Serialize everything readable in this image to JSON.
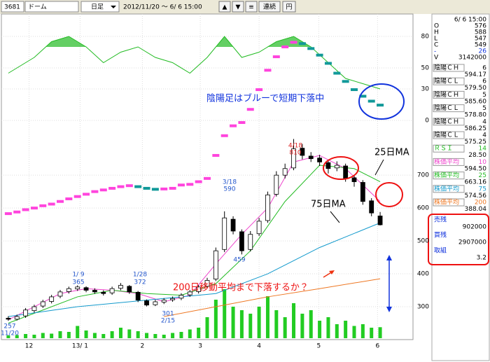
{
  "toolbar": {
    "code": "3681",
    "name": "ドーム",
    "period": "日足",
    "range": "2012/11/20 ～ 6/ 6 15:00",
    "buttons": [
      "▲",
      "▼",
      "≡",
      "連続",
      "円"
    ]
  },
  "chart_data": {
    "type": "candlestick",
    "xlim": [
      -0.8,
      46.8
    ],
    "xticks": [
      {
        "value": 2.4,
        "label": "12"
      },
      {
        "value": 8.3,
        "label": "13/ 1"
      },
      {
        "value": 15.5,
        "label": "2"
      },
      {
        "value": 22.2,
        "label": "3"
      },
      {
        "value": 29,
        "label": "4"
      },
      {
        "value": 35.9,
        "label": "5"
      },
      {
        "value": 42.7,
        "label": "6"
      }
    ],
    "ylim": [
      200,
      1190
    ],
    "yticks": [
      300,
      400,
      500,
      600,
      700
    ],
    "rsi_ylim": [
      0,
      100
    ],
    "rsi_yticks": [
      0,
      30,
      50,
      80
    ],
    "rsi_fill_above": 70,
    "grid": true,
    "up_color": "#ffffff",
    "down_color": "#000000",
    "open": [
      265,
      262,
      272,
      288,
      302,
      316,
      332,
      346,
      354,
      358,
      350,
      344,
      342,
      356,
      362,
      344,
      318,
      306,
      314,
      321,
      326,
      336,
      346,
      362,
      384,
      474,
      566,
      528,
      474,
      522,
      562,
      642,
      700,
      722,
      782,
      758,
      752,
      738,
      722,
      728,
      692,
      678,
      622,
      576
    ],
    "high": [
      271,
      276,
      296,
      306,
      321,
      336,
      351,
      361,
      365,
      362,
      356,
      350,
      361,
      372,
      366,
      348,
      322,
      321,
      326,
      331,
      341,
      351,
      366,
      388,
      480,
      590,
      575,
      535,
      530,
      570,
      650,
      712,
      735,
      810,
      795,
      770,
      762,
      745,
      742,
      735,
      700,
      685,
      630,
      588
    ],
    "low": [
      257,
      258,
      266,
      282,
      296,
      310,
      326,
      340,
      348,
      344,
      339,
      334,
      336,
      350,
      339,
      314,
      301,
      302,
      308,
      315,
      320,
      330,
      340,
      356,
      378,
      466,
      520,
      459,
      468,
      515,
      555,
      635,
      690,
      715,
      748,
      740,
      728,
      705,
      712,
      680,
      665,
      610,
      575,
      547
    ],
    "close": [
      262,
      270,
      290,
      300,
      315,
      330,
      345,
      355,
      360,
      350,
      345,
      340,
      355,
      365,
      345,
      320,
      305,
      315,
      320,
      325,
      335,
      345,
      360,
      380,
      470,
      570,
      530,
      470,
      520,
      560,
      640,
      700,
      720,
      780,
      760,
      750,
      740,
      720,
      730,
      690,
      680,
      620,
      585,
      549
    ],
    "volume": [
      800000,
      900000,
      1200000,
      1000000,
      1500000,
      1300000,
      2000000,
      1800000,
      3500000,
      2200000,
      1500000,
      1200000,
      2000000,
      3000000,
      2500000,
      2000000,
      1500000,
      1200000,
      1000000,
      1500000,
      1800000,
      2500000,
      3000000,
      6000000,
      11000000,
      14000000,
      9000000,
      8000000,
      7000000,
      9000000,
      12000000,
      8000000,
      6000000,
      10000000,
      7000000,
      8000000,
      5000000,
      6000000,
      4000000,
      5000000,
      3500000,
      4000000,
      3000000,
      3142000
    ],
    "volume_color": "#22cc22",
    "yinyang": {
      "up_color": "#ff44dd",
      "down_color": "#119999",
      "values": [
        583,
        588,
        595,
        600,
        607,
        612,
        620,
        628,
        635,
        642,
        650,
        655,
        660,
        665,
        668,
        665,
        660,
        657,
        658,
        660,
        670,
        672,
        680,
        690,
        760,
        820,
        850,
        860,
        900,
        960,
        1019,
        1060,
        1090,
        1104,
        1100,
        1085,
        1065,
        1040,
        1010,
        985,
        960,
        940,
        925,
        913
      ]
    },
    "ma_series": [
      {
        "color": "#ee44cc",
        "x": [
          0,
          3,
          6,
          9,
          12,
          15,
          18,
          21,
          24,
          27,
          30,
          33,
          36,
          39,
          43
        ],
        "values": [
          260,
          300,
          340,
          355,
          350,
          340,
          315,
          335,
          430,
          520,
          600,
          740,
          760,
          720,
          620
        ]
      },
      {
        "name": "25日MA",
        "color": "#22bb22",
        "x": [
          0,
          4,
          8,
          12,
          16,
          20,
          24,
          28,
          32,
          36,
          40,
          43
        ],
        "values": [
          250,
          290,
          330,
          350,
          340,
          335,
          370,
          470,
          620,
          730,
          720,
          680
        ]
      },
      {
        "name": "75日MA",
        "color": "#1199cc",
        "x": [
          0,
          8,
          16,
          24,
          30,
          36,
          43
        ],
        "values": [
          270,
          300,
          320,
          340,
          400,
          480,
          555
        ]
      },
      {
        "color": "#ee7722",
        "x": [
          18,
          24,
          30,
          36,
          43
        ],
        "values": [
          270,
          300,
          330,
          355,
          385
        ]
      }
    ],
    "rsi": {
      "color": "#22bb22",
      "x": [
        0,
        3,
        5,
        7,
        9,
        11,
        13,
        15,
        17,
        19,
        21,
        23,
        25,
        27,
        29,
        31,
        33,
        35,
        37,
        39,
        41,
        43
      ],
      "values": [
        45,
        60,
        75,
        80,
        70,
        55,
        65,
        70,
        60,
        55,
        45,
        60,
        80,
        60,
        65,
        75,
        80,
        70,
        55,
        40,
        35,
        30
      ]
    },
    "point_labels": [
      {
        "date": "1/ 9",
        "value": 365
      },
      {
        "date": "1/28",
        "value": 372
      },
      {
        "date": "2/15",
        "value": 301
      },
      {
        "date": "3/18",
        "value": 590
      },
      {
        "value": 459
      },
      {
        "date": "4/18",
        "value": 810
      },
      {
        "date": "11/20",
        "value": 257
      }
    ],
    "annotations": [
      {
        "text": "陰陽足はブルーで短期下落中",
        "color": "#1133dd"
      },
      {
        "text": "200日移動平均まで下落するか？",
        "color": "#ee1111"
      }
    ]
  },
  "side_panel": {
    "datetime": "6/ 6 15:00",
    "quote": [
      {
        "label": "O",
        "value": "576"
      },
      {
        "label": "H",
        "value": "588"
      },
      {
        "label": "L",
        "value": "547"
      },
      {
        "label": "C",
        "value": "549"
      },
      {
        "label": "-",
        "value": "26",
        "color": "#1133dd"
      },
      {
        "label": "V",
        "value": "3142000"
      }
    ],
    "indicators": [
      {
        "label": "陰陽ＣＨ",
        "param": "6",
        "value": "594.17",
        "color": "#000000"
      },
      {
        "label": "陰陽ＣＬ",
        "param": "6",
        "value": "579.50",
        "color": "#000000"
      },
      {
        "label": "陰陽ＣＨ",
        "param": "5",
        "value": "585.60",
        "color": "#000000"
      },
      {
        "label": "陰陽ＣＬ",
        "param": "5",
        "value": "578.80",
        "color": "#000000"
      },
      {
        "label": "陰陽ＣＨ",
        "param": "4",
        "value": "586.25",
        "color": "#000000"
      },
      {
        "label": "陰陽ＣＬ",
        "param": "4",
        "value": "575.25",
        "color": "#000000"
      },
      {
        "label": "ＲＳＩ",
        "param": "14",
        "value": "28.50",
        "color": "#22bb22"
      },
      {
        "label": "株価平均",
        "param": "10",
        "value": "594.50",
        "color": "#ee44cc"
      },
      {
        "label": "株価平均",
        "param": "25",
        "value": "663.16",
        "color": "#22bb22"
      },
      {
        "label": "株価平均",
        "param": "75",
        "value": "574.56",
        "color": "#1199cc"
      },
      {
        "label": "株価平均",
        "param": "200",
        "value": "388.04",
        "color": "#ee7722"
      }
    ],
    "margin": [
      {
        "label": "売残",
        "value": "902000"
      },
      {
        "label": "買残",
        "value": "2907000"
      },
      {
        "label": "取組",
        "value": "3.2"
      }
    ]
  }
}
